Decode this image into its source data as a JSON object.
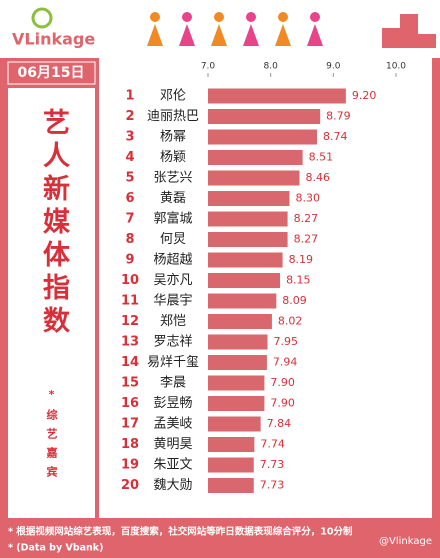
{
  "brand": "VLinkage",
  "date": "06月15日",
  "watermark": "@Vlinkage",
  "footnotes": [
    "* 根据视频网站综艺表现，百度搜索，社交网站等昨日数据表现综合评分，10分制",
    "* (Data by Vbank)"
  ],
  "chart_data": {
    "type": "hbar",
    "title": "艺人新媒体指数",
    "subtitle": "*综艺嘉宾",
    "ranks": [
      "1",
      "2",
      "3",
      "4",
      "5",
      "6",
      "7",
      "8",
      "9",
      "10",
      "11",
      "12",
      "13",
      "14",
      "15",
      "16",
      "17",
      "18",
      "19",
      "20"
    ],
    "categories": [
      "邓伦",
      "迪丽热巴",
      "杨幂",
      "杨颖",
      "张艺兴",
      "黄磊",
      "郭富城",
      "何炅",
      "杨超越",
      "吴亦凡",
      "华晨宇",
      "郑恺",
      "罗志祥",
      "易烊千玺",
      "李晨",
      "彭昱畅",
      "孟美岐",
      "黄明昊",
      "朱亚文",
      "魏大勋"
    ],
    "values": [
      9.2,
      8.79,
      8.74,
      8.51,
      8.46,
      8.3,
      8.27,
      8.27,
      8.19,
      8.15,
      8.09,
      8.02,
      7.95,
      7.94,
      7.9,
      7.9,
      7.84,
      7.74,
      7.73,
      7.73
    ],
    "value_labels": [
      "9.20",
      "8.79",
      "8.74",
      "8.51",
      "8.46",
      "8.30",
      "8.27",
      "8.27",
      "8.19",
      "8.15",
      "8.09",
      "8.02",
      "7.95",
      "7.94",
      "7.90",
      "7.90",
      "7.84",
      "7.74",
      "7.73",
      "7.73"
    ],
    "color": "#d9676e",
    "xlim": [
      7,
      10
    ],
    "xticks": [
      {
        "value": 7,
        "label": "7.0"
      },
      {
        "value": 8,
        "label": "8.0"
      },
      {
        "value": 9,
        "label": "9.0"
      },
      {
        "value": 10,
        "label": "10.0"
      }
    ]
  }
}
